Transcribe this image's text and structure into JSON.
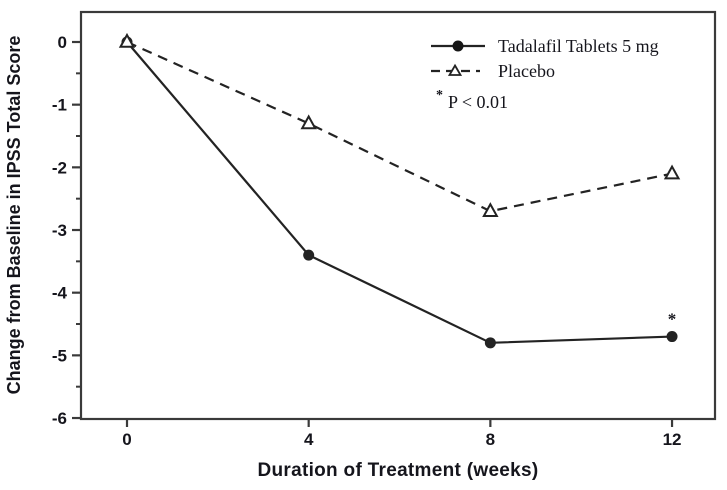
{
  "figure": {
    "xlabel": "Duration of Treatment (weeks)",
    "ylabel": "Change from Baseline in IPSS Total Score"
  },
  "legend": {
    "items": [
      {
        "label": "Tadalafil Tablets 5 mg",
        "marker": "filled-circle",
        "line": "solid"
      },
      {
        "label": "Placebo",
        "marker": "open-triangle",
        "line": "dashed"
      }
    ],
    "pvalue_marker": "*",
    "pvalue_label": "P < 0.01"
  },
  "colors": {
    "line": "#232323",
    "frame": "#3a3a3a",
    "text": "#15151c",
    "background": "#ffffff"
  },
  "chart_data": {
    "type": "line",
    "title": "",
    "xlabel": "Duration of Treatment (weeks)",
    "ylabel": "Change from Baseline in IPSS Total Score",
    "x": [
      0,
      4,
      8,
      12
    ],
    "xticks": [
      "0",
      "4",
      "8",
      "12"
    ],
    "xlim": [
      0,
      12
    ],
    "ylim": [
      -6,
      0.5
    ],
    "ytick_values": [
      0,
      -1,
      -2,
      -3,
      -4,
      -5,
      -6
    ],
    "yticks": [
      "0",
      "-1",
      "-2",
      "-3",
      "-4",
      "-5",
      "-6"
    ],
    "y_minor_tick_step": 0.5,
    "grid": false,
    "legend_position": "top-right",
    "series": [
      {
        "name": "Tadalafil Tablets 5 mg",
        "values": [
          0,
          -3.4,
          -4.8,
          -4.7
        ],
        "line_style": "solid",
        "marker": "filled-circle"
      },
      {
        "name": "Placebo",
        "values": [
          0,
          -1.3,
          -2.7,
          -2.1
        ],
        "line_style": "dashed",
        "marker": "open-triangle"
      }
    ],
    "annotations": [
      {
        "text": "*",
        "x": 12,
        "y": -4.7,
        "series": "Tadalafil Tablets 5 mg"
      }
    ]
  }
}
